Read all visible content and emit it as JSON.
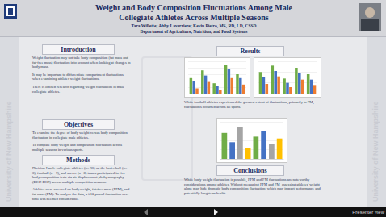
{
  "poster": {
    "title": "Weight and Body Composition Fluctuations Among Male Collegiate Athletes Across Multiple Seasons",
    "authors": "Tara Willette; Abby Laverriere; Kevin Pietro, MS, RD, LD, CSSD",
    "department": "Department of Agriculture, Nutrition, and Food Systems",
    "side_text": "University of New Hampshire"
  },
  "sections": [
    {
      "heading": "Introduction",
      "paragraphs": [
        "Weight fluctuation may not take body composition (fat mass and fat-free mass) fluctuation into account when looking at changes in body mass.",
        "It may be important to differentiate compartment fluctuations when examining athletes weight fluctuations.",
        "There is limited research regarding weight fluctuation in male collegiate athletes."
      ]
    },
    {
      "heading": "Objectives",
      "paragraphs": [
        "To examine the degree of body weight versus body composition fluctuation in collegiate male athletes.",
        "To compare body weight and composition fluctuation across multiple seasons in various sports."
      ]
    },
    {
      "heading": "Methods",
      "paragraphs": [
        "Division I male collegiate athletes (n= 20) on the basketball (n= 3), football (n= 9), and soccer (n= 8) teams participated in five body composition tests via air displacement plethysmography (BOD POD) across multiple competition seasons.",
        "Athletes were assessed on body weight, fat-free mass (FFM), and fat mass (FM). To analyze the data, a ≥10 pound fluctuation over time was deemed considerable."
      ]
    }
  ],
  "results": {
    "heading": "Results",
    "text": "While football athletes experienced the greatest extent of fluctuations, primarily in FM, fluctuations occurred across all sports."
  },
  "conclusions": {
    "heading": "Conclusions",
    "text": "While body weight fluctuation is possible, FFM and FM fluctuations are noteworthy considerations among athletes. Without measuring FFM and FM, assessing athletes' weight alone may hide dramatic body composition fluctuation, which may impact performance and potentially long-term health."
  },
  "viewer": {
    "label": "Presenter view"
  },
  "chart_data": [
    {
      "type": "bar",
      "categories": [
        null,
        null,
        null,
        null,
        null
      ],
      "series": [
        {
          "color": "#70ad47",
          "values": [
            12,
            18,
            8,
            22,
            15
          ]
        },
        {
          "color": "#4472c4",
          "values": [
            10,
            14,
            6,
            19,
            12
          ]
        },
        {
          "color": "#ed7d31",
          "values": [
            4,
            9,
            3,
            12,
            7
          ]
        }
      ],
      "ylim": [
        0,
        25
      ],
      "yticks": [
        0,
        5,
        10,
        15,
        20,
        25
      ],
      "grid": true,
      "tick_labels": false
    },
    {
      "type": "bar",
      "categories": [
        null,
        null,
        null,
        null,
        null
      ],
      "series": [
        {
          "color": "#70ad47",
          "values": [
            20,
            26,
            14,
            24,
            18
          ]
        },
        {
          "color": "#4472c4",
          "values": [
            15,
            21,
            10,
            19,
            13
          ]
        },
        {
          "color": "#ed7d31",
          "values": [
            9,
            16,
            6,
            13,
            8
          ]
        }
      ],
      "ylim": [
        0,
        30
      ],
      "yticks": [
        0,
        10,
        20,
        30
      ],
      "grid": true,
      "tick_labels": false
    },
    {
      "type": "bar",
      "categories": [
        null,
        null,
        null,
        null,
        null,
        null,
        null,
        null
      ],
      "values": [
        14,
        9,
        17,
        6,
        12,
        15,
        8,
        11
      ],
      "colors": [
        "#70ad47",
        "#4472c4",
        "#a5a5a5",
        "#ffc000",
        "#70ad47",
        "#4472c4",
        "#a5a5a5",
        "#ffc000"
      ],
      "ylim": [
        0,
        20
      ],
      "yticks": [
        0,
        5,
        10,
        15,
        20
      ],
      "grid": true,
      "tick_labels": false
    }
  ]
}
